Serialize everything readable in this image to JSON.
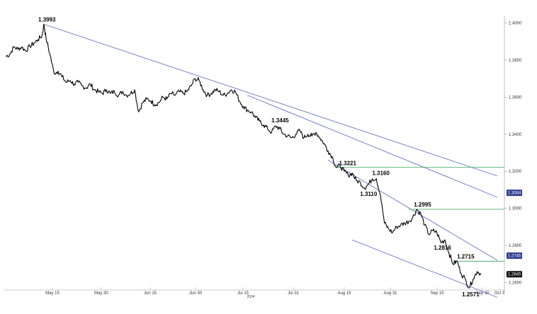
{
  "chart_data": {
    "type": "line",
    "title": "",
    "xlabel": "",
    "ylabel": "",
    "ylim": [
      1.256,
      1.404
    ],
    "y_ticks": [
      "1.4000",
      "1.3800",
      "1.3600",
      "1.3400",
      "1.3200",
      "1.3000",
      "1.2800",
      "1.2600"
    ],
    "x_ticks": [
      "May 15",
      "May 30",
      "Jun 15",
      "Jun 30",
      "Jul 15",
      "Jul 31",
      "Aug 15",
      "Aug 31",
      "Sep 15",
      "Sep 30",
      "Oct 3"
    ],
    "year_label": "2024",
    "grid": false,
    "series": [
      {
        "values": [
          [
            0,
            1.382
          ],
          [
            1,
            1.383
          ],
          [
            2,
            1.387
          ],
          [
            3,
            1.386
          ],
          [
            4,
            1.387
          ],
          [
            5,
            1.385
          ],
          [
            6,
            1.3875
          ],
          [
            7,
            1.389
          ],
          [
            8,
            1.391
          ],
          [
            9,
            1.393
          ],
          [
            9.5,
            1.3993
          ],
          [
            10,
            1.392
          ],
          [
            11,
            1.383
          ],
          [
            12,
            1.373
          ],
          [
            13,
            1.374
          ],
          [
            14,
            1.371
          ],
          [
            15,
            1.368
          ],
          [
            16,
            1.369
          ],
          [
            17,
            1.367
          ],
          [
            18,
            1.368
          ],
          [
            19,
            1.366
          ],
          [
            20,
            1.365
          ],
          [
            21,
            1.367
          ],
          [
            22,
            1.364
          ],
          [
            23,
            1.363
          ],
          [
            24,
            1.362
          ],
          [
            25,
            1.364
          ],
          [
            26,
            1.362
          ],
          [
            27,
            1.363
          ],
          [
            28,
            1.361
          ],
          [
            29,
            1.363
          ],
          [
            30,
            1.361
          ],
          [
            31,
            1.362
          ],
          [
            32,
            1.364
          ],
          [
            33,
            1.352
          ],
          [
            34,
            1.357
          ],
          [
            35,
            1.359
          ],
          [
            36,
            1.358
          ],
          [
            37,
            1.356
          ],
          [
            38,
            1.357
          ],
          [
            39,
            1.36
          ],
          [
            40,
            1.359
          ],
          [
            41,
            1.362
          ],
          [
            42,
            1.361
          ],
          [
            43,
            1.363
          ],
          [
            44,
            1.362
          ],
          [
            45,
            1.363
          ],
          [
            46,
            1.366
          ],
          [
            47,
            1.37
          ],
          [
            48,
            1.369
          ],
          [
            49,
            1.364
          ],
          [
            50,
            1.361
          ],
          [
            51,
            1.362
          ],
          [
            52,
            1.364
          ],
          [
            53,
            1.363
          ],
          [
            54,
            1.361
          ],
          [
            55,
            1.362
          ],
          [
            56,
            1.364
          ],
          [
            57,
            1.363
          ],
          [
            58,
            1.358
          ],
          [
            59,
            1.355
          ],
          [
            60,
            1.353
          ],
          [
            61,
            1.352
          ],
          [
            62,
            1.349
          ],
          [
            63,
            1.347
          ],
          [
            64,
            1.345
          ],
          [
            65,
            1.343
          ],
          [
            66,
            1.341
          ],
          [
            67,
            1.3445
          ],
          [
            68,
            1.343
          ],
          [
            69,
            1.34
          ],
          [
            70,
            1.339
          ],
          [
            71,
            1.338
          ],
          [
            72,
            1.34
          ],
          [
            73,
            1.342
          ],
          [
            74,
            1.338
          ],
          [
            75,
            1.34
          ],
          [
            76,
            1.339
          ],
          [
            77,
            1.341
          ],
          [
            78,
            1.338
          ],
          [
            79,
            1.335
          ],
          [
            80,
            1.331
          ],
          [
            81,
            1.328
          ],
          [
            82,
            1.3221
          ],
          [
            83,
            1.323
          ],
          [
            84,
            1.32
          ],
          [
            85,
            1.318
          ],
          [
            86,
            1.319
          ],
          [
            87,
            1.315
          ],
          [
            88,
            1.314
          ],
          [
            89,
            1.311
          ],
          [
            90,
            1.313
          ],
          [
            91,
            1.316
          ],
          [
            92,
            1.316
          ],
          [
            93,
            1.307
          ],
          [
            94,
            1.292
          ],
          [
            95,
            1.289
          ],
          [
            96,
            1.287
          ],
          [
            97,
            1.29
          ],
          [
            98,
            1.291
          ],
          [
            99,
            1.292
          ],
          [
            100,
            1.293
          ],
          [
            101,
            1.295
          ],
          [
            102,
            1.2995
          ],
          [
            103,
            1.297
          ],
          [
            104,
            1.291
          ],
          [
            105,
            1.286
          ],
          [
            106,
            1.288
          ],
          [
            107,
            1.287
          ],
          [
            108,
            1.2816
          ],
          [
            109,
            1.283
          ],
          [
            110,
            1.276
          ],
          [
            111,
            1.27
          ],
          [
            112,
            1.2715
          ],
          [
            113,
            1.265
          ],
          [
            114,
            1.262
          ],
          [
            115,
            1.2571
          ],
          [
            116,
            1.262
          ],
          [
            117,
            1.266
          ],
          [
            118,
            1.2645
          ]
        ]
      }
    ],
    "annotations": [
      {
        "text": "1.3993",
        "x": 9.5,
        "y": 1.3993
      },
      {
        "text": "1.3445",
        "x": 67,
        "y": 1.3445
      },
      {
        "text": "1.3221",
        "x": 82,
        "y": 1.3221
      },
      {
        "text": "1.3160",
        "x": 92,
        "y": 1.316
      },
      {
        "text": "1.3110",
        "x": 89,
        "y": 1.311
      },
      {
        "text": "1.2995",
        "x": 102,
        "y": 1.2995
      },
      {
        "text": "1.2816",
        "x": 108,
        "y": 1.2816
      },
      {
        "text": "1.2715",
        "x": 112,
        "y": 1.2715
      },
      {
        "text": "1.2571",
        "x": 115,
        "y": 1.2571
      }
    ],
    "horizontal_levels": [
      {
        "y": 1.3221,
        "color": "#4caf6d"
      },
      {
        "y": 1.2995,
        "color": "#4caf6d"
      },
      {
        "y": 1.2715,
        "color": "#4caf6d"
      }
    ],
    "trendlines": [
      {
        "from": [
          9.5,
          1.3993
        ],
        "to": [
          122,
          1.3175
        ],
        "color": "#3a56b8"
      },
      {
        "from": [
          60,
          1.361
        ],
        "to": [
          122,
          1.306
        ],
        "color": "#3a56b8"
      },
      {
        "from": [
          80,
          1.326
        ],
        "to": [
          122,
          1.272
        ],
        "color": "#3a56b8"
      },
      {
        "from": [
          86,
          1.283
        ],
        "to": [
          122,
          1.252
        ],
        "color": "#3a56b8"
      }
    ],
    "right_tags": [
      {
        "text": "1.3084",
        "y": 1.3084,
        "color": "#2d3f8e"
      },
      {
        "text": "1.2745",
        "y": 1.2745,
        "color": "#2d3f8e"
      },
      {
        "text": "1.2645",
        "y": 1.2645,
        "color": "#111111"
      }
    ],
    "colors": {
      "price": "#000000",
      "support": "#4caf6d",
      "trend": "#3a56b8"
    }
  }
}
